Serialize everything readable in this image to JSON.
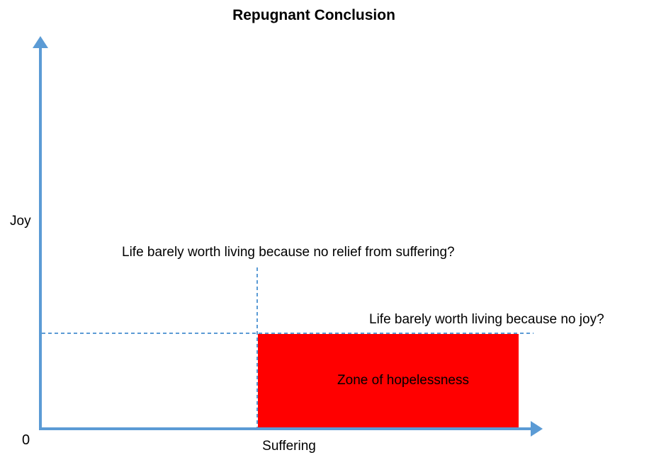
{
  "title": "Repugnant Conclusion",
  "axes": {
    "y_label": "Joy",
    "x_label": "Suffering",
    "origin_label": "0"
  },
  "annotations": {
    "vertical_guide": "Life barely worth living because no relief from suffering?",
    "horizontal_guide": "Life barely worth living because no joy?",
    "zone_label": "Zone of hopelessness"
  },
  "colors": {
    "axis": "#5B9BD5",
    "dashed_guide": "#5B9BD5",
    "zone_fill": "#FF0000",
    "text": "#000000",
    "background": "#FFFFFF"
  }
}
